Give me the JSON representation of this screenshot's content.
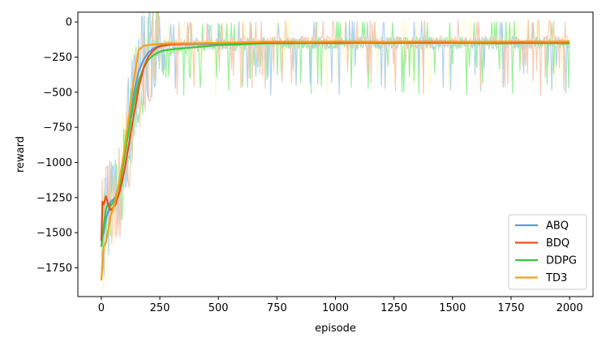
{
  "chart_data": {
    "type": "line",
    "xlabel": "episode",
    "ylabel": "reward",
    "xlim": [
      -100,
      2100
    ],
    "ylim": [
      -1955,
      70
    ],
    "xticks": [
      0,
      250,
      500,
      750,
      1000,
      1250,
      1500,
      1750,
      2000
    ],
    "yticks": [
      0,
      -250,
      -500,
      -750,
      -1000,
      -1250,
      -1500,
      -1750
    ],
    "legend": "lower-right",
    "grid": false,
    "series": [
      {
        "name": "ABQ",
        "color": "#5b9bdf",
        "raw_color": "#a9cdf0",
        "x": [
          0,
          10,
          20,
          30,
          40,
          60,
          80,
          100,
          120,
          140,
          160,
          180,
          200,
          220,
          240,
          260,
          300,
          400,
          500,
          600,
          700,
          800,
          900,
          1000,
          1100,
          1200,
          1300,
          1400,
          1500,
          1600,
          1700,
          1800,
          1900,
          2000
        ],
        "y": [
          -1550,
          -1500,
          -1400,
          -1350,
          -1280,
          -1250,
          -1150,
          -900,
          -700,
          -500,
          -350,
          -270,
          -220,
          -190,
          -175,
          -165,
          -158,
          -158,
          -155,
          -155,
          -152,
          -150,
          -148,
          -150,
          -148,
          -148,
          -147,
          -147,
          -147,
          -146,
          -147,
          -147,
          -146,
          -148
        ]
      },
      {
        "name": "BDQ",
        "color": "#e8511a",
        "raw_color": "#f7c8b0",
        "x": [
          0,
          5,
          10,
          20,
          30,
          40,
          50,
          60,
          80,
          100,
          120,
          140,
          160,
          180,
          200,
          220,
          240,
          260,
          300,
          400,
          500,
          600,
          700,
          800,
          900,
          1000,
          1100,
          1200,
          1300,
          1400,
          1500,
          1600,
          1700,
          1800,
          1900,
          2000
        ],
        "y": [
          -1560,
          -1280,
          -1300,
          -1240,
          -1300,
          -1340,
          -1320,
          -1300,
          -1200,
          -1050,
          -850,
          -650,
          -470,
          -330,
          -250,
          -205,
          -180,
          -170,
          -160,
          -155,
          -150,
          -148,
          -147,
          -145,
          -146,
          -145,
          -144,
          -145,
          -144,
          -144,
          -145,
          -144,
          -144,
          -145,
          -144,
          -143
        ]
      },
      {
        "name": "DDPG",
        "color": "#3cc73c",
        "raw_color": "#90ee90",
        "x": [
          0,
          10,
          20,
          30,
          40,
          60,
          80,
          100,
          120,
          140,
          160,
          180,
          200,
          220,
          240,
          260,
          300,
          400,
          500,
          600,
          700,
          800,
          900,
          1000,
          1100,
          1200,
          1300,
          1400,
          1500,
          1600,
          1700,
          1800,
          1900,
          2000
        ],
        "y": [
          -1600,
          -1450,
          -1330,
          -1290,
          -1310,
          -1260,
          -1150,
          -950,
          -750,
          -560,
          -420,
          -330,
          -270,
          -240,
          -220,
          -205,
          -195,
          -180,
          -165,
          -160,
          -150,
          -152,
          -150,
          -152,
          -148,
          -150,
          -149,
          -150,
          -148,
          -150,
          -152,
          -150,
          -151,
          -152
        ]
      },
      {
        "name": "TD3",
        "color": "#f5a214",
        "raw_color": "#fffbc8",
        "x": [
          0,
          10,
          20,
          30,
          40,
          50,
          60,
          70,
          80,
          100,
          120,
          140,
          160,
          180,
          200,
          220,
          240,
          260,
          300,
          400,
          500,
          600,
          700,
          800,
          900,
          1000,
          1100,
          1200,
          1300,
          1400,
          1500,
          1600,
          1700,
          1800,
          1900,
          2000
        ],
        "y": [
          -1840,
          -1600,
          -1570,
          -1480,
          -1380,
          -1330,
          -1270,
          -1200,
          -1100,
          -900,
          -650,
          -400,
          -200,
          -170,
          -165,
          -160,
          -158,
          -155,
          -152,
          -152,
          -148,
          -145,
          -140,
          -140,
          -142,
          -138,
          -140,
          -142,
          -140,
          -138,
          -140,
          -142,
          -140,
          -138,
          -140,
          -138
        ]
      }
    ]
  }
}
